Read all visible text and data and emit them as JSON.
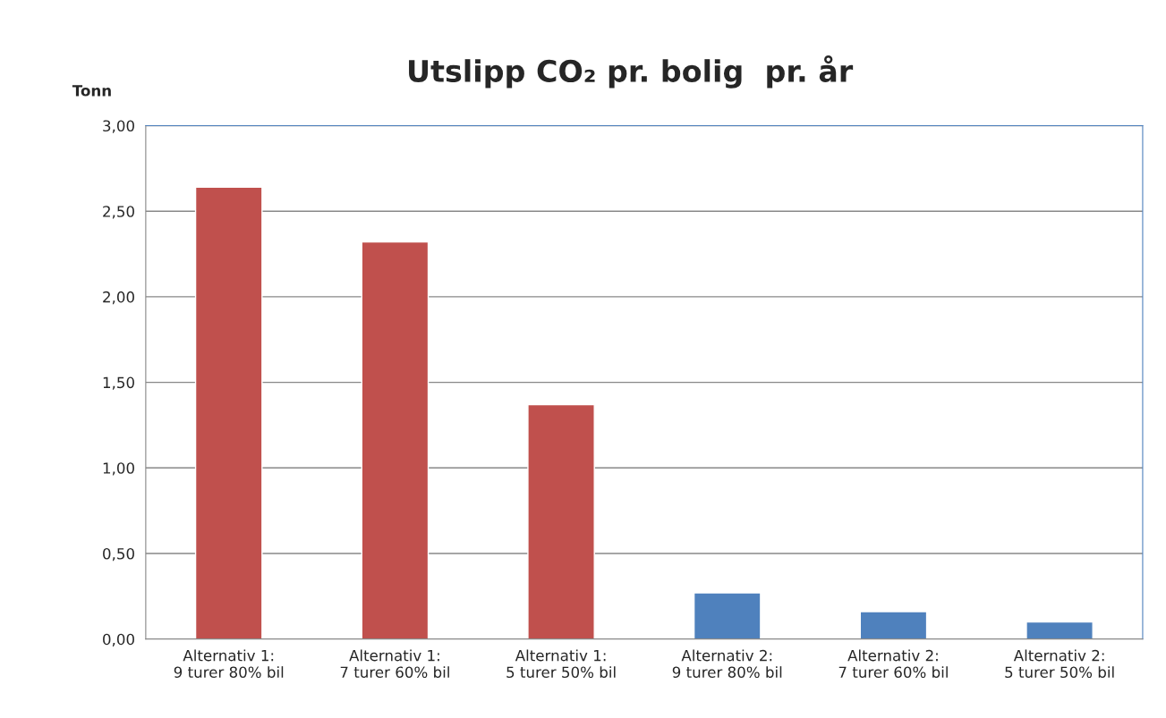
{
  "chart_data": {
    "type": "bar",
    "title": "Utslipp CO₂ pr. bolig  pr. år",
    "ylabel": "Tonn",
    "categories": [
      "Alternativ 1:\n9 turer 80% bil",
      "Alternativ 1:\n7 turer 60% bil",
      "Alternativ 1:\n5 turer 50% bil",
      "Alternativ 2:\n9 turer 80% bil",
      "Alternativ 2:\n7 turer 60% bil",
      "Alternativ 2:\n5 turer 50% bil"
    ],
    "values": [
      2.64,
      2.32,
      1.37,
      0.27,
      0.16,
      0.1
    ],
    "colors": [
      "#c0504d",
      "#c0504d",
      "#c0504d",
      "#4f81bd",
      "#4f81bd",
      "#4f81bd"
    ],
    "ylim": [
      0,
      3
    ],
    "yticks": [
      {
        "value": 0,
        "label": "0,00"
      },
      {
        "value": 0.5,
        "label": "0,50"
      },
      {
        "value": 1,
        "label": "1,00"
      },
      {
        "value": 1.5,
        "label": "1,50"
      },
      {
        "value": 2,
        "label": "2,00"
      },
      {
        "value": 2.5,
        "label": "2,50"
      },
      {
        "value": 3,
        "label": "3,00"
      }
    ],
    "grid": "y",
    "legend": false
  }
}
